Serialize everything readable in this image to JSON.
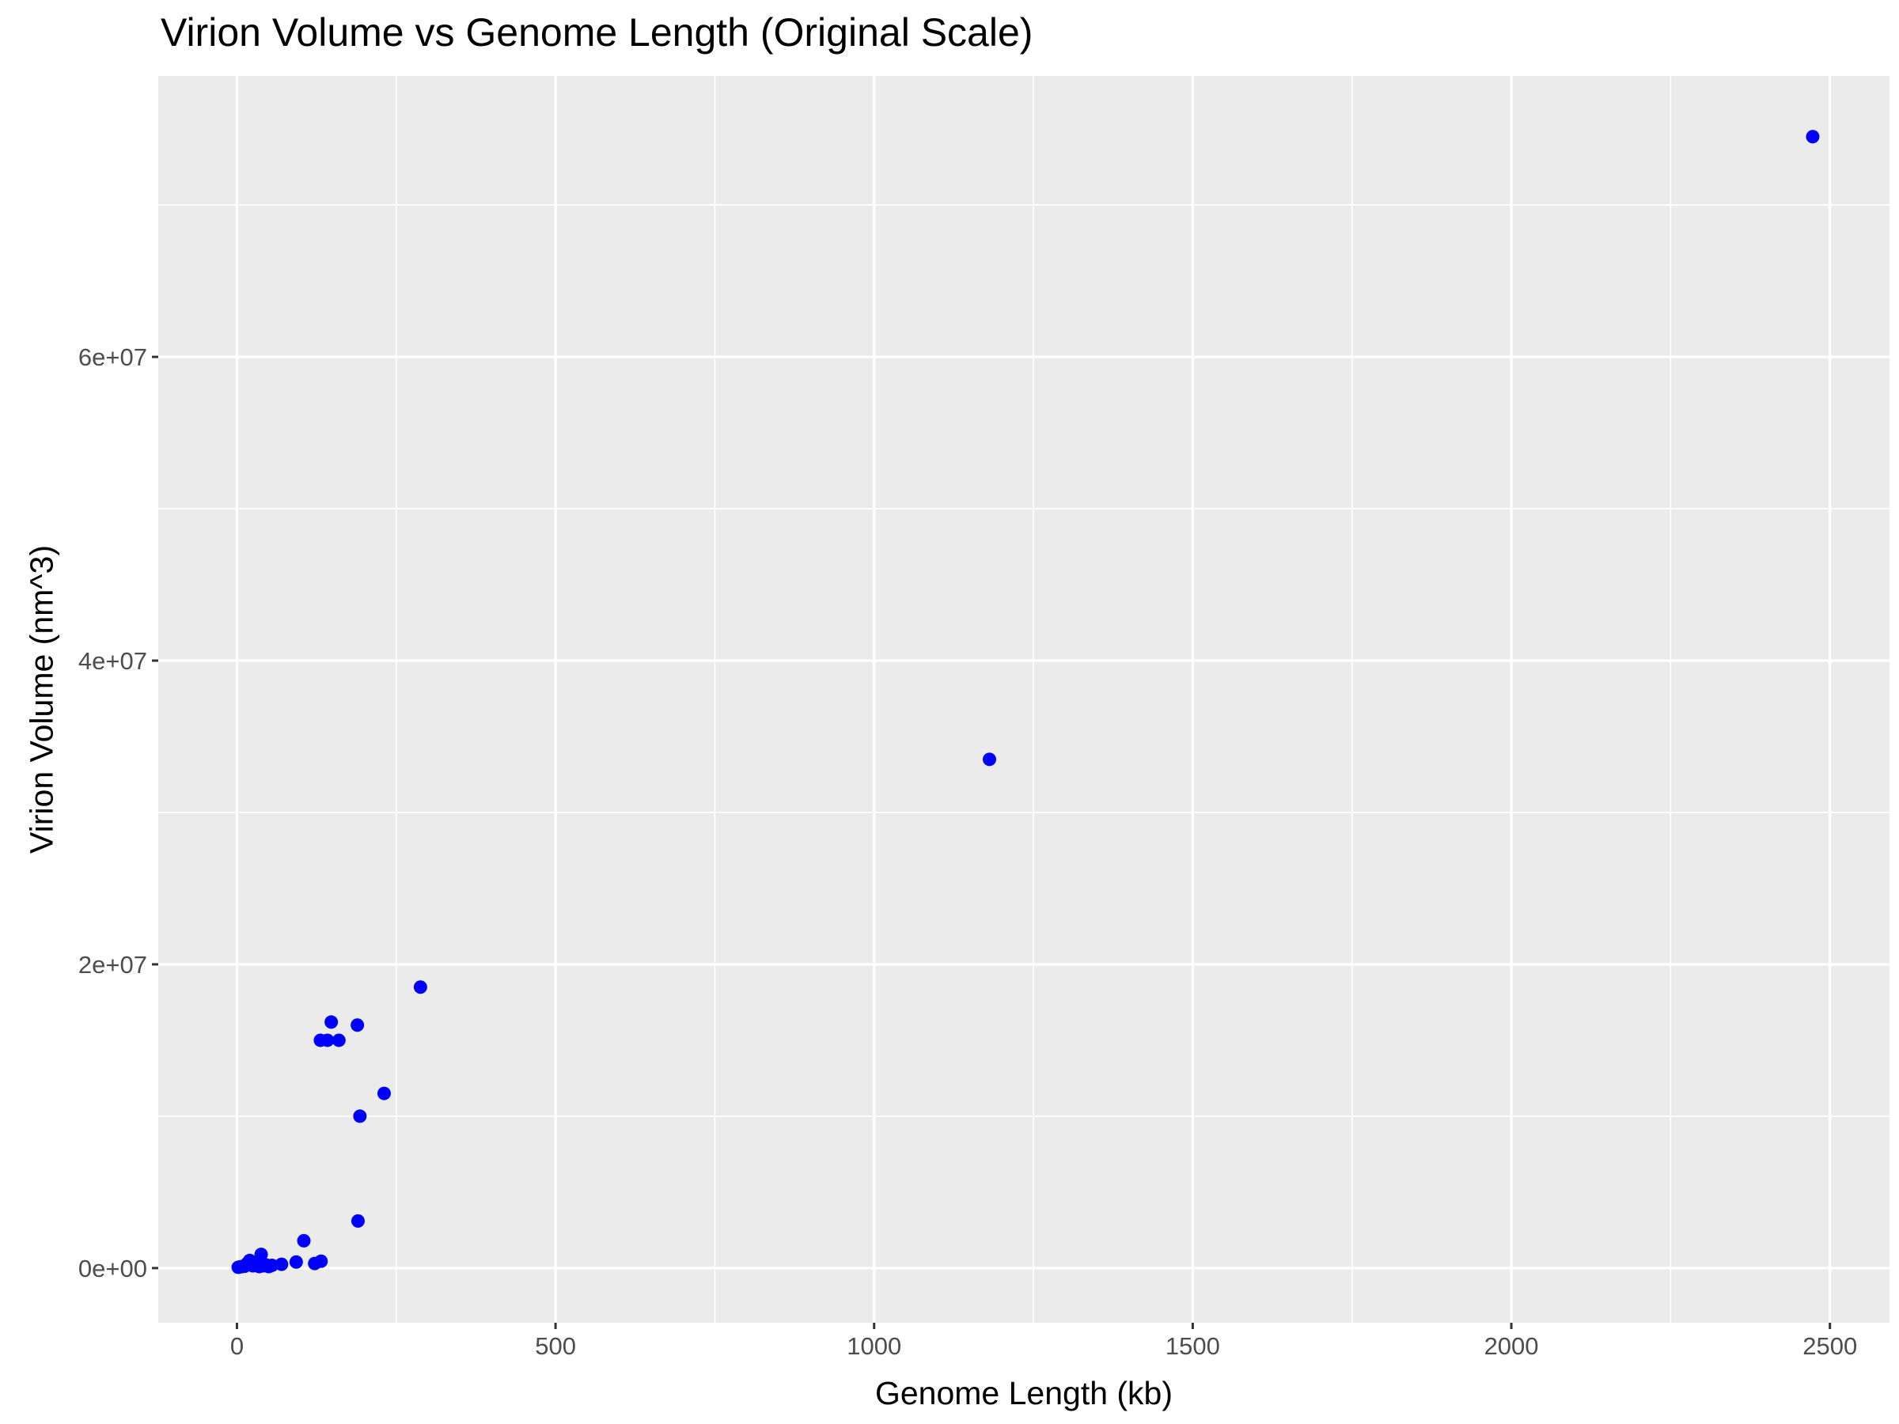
{
  "chart_data": {
    "type": "scatter",
    "title": "Virion Volume vs Genome Length (Original Scale)",
    "xlabel": "Genome Length (kb)",
    "ylabel": "Virion Volume (nm^3)",
    "xlim": [
      -123.5,
      2593.5
    ],
    "ylim": [
      -3600000,
      78500000
    ],
    "x_ticks": [
      0,
      500,
      1000,
      1500,
      2000,
      2500
    ],
    "x_tick_labels": [
      "0",
      "500",
      "1000",
      "1500",
      "2000",
      "2500"
    ],
    "y_ticks": [
      0,
      20000000,
      40000000,
      60000000
    ],
    "y_tick_labels": [
      "0e+00",
      "2e+07",
      "4e+07",
      "6e+07"
    ],
    "grid": true,
    "point_color": "#0000ff",
    "panel_background": "#ebebeb",
    "grid_color": "#ffffff",
    "points": [
      {
        "x": 2,
        "y": 50000
      },
      {
        "x": 5,
        "y": 80000
      },
      {
        "x": 8,
        "y": 100000
      },
      {
        "x": 12,
        "y": 120000
      },
      {
        "x": 16,
        "y": 300000
      },
      {
        "x": 20,
        "y": 500000
      },
      {
        "x": 25,
        "y": 150000
      },
      {
        "x": 30,
        "y": 200000
      },
      {
        "x": 35,
        "y": 100000
      },
      {
        "x": 38,
        "y": 900000
      },
      {
        "x": 42,
        "y": 150000
      },
      {
        "x": 46,
        "y": 200000
      },
      {
        "x": 50,
        "y": 100000
      },
      {
        "x": 55,
        "y": 180000
      },
      {
        "x": 70,
        "y": 250000
      },
      {
        "x": 93,
        "y": 400000
      },
      {
        "x": 105,
        "y": 1800000
      },
      {
        "x": 122,
        "y": 300000
      },
      {
        "x": 132,
        "y": 450000
      },
      {
        "x": 131,
        "y": 15000000
      },
      {
        "x": 142,
        "y": 15000000
      },
      {
        "x": 148,
        "y": 16200000
      },
      {
        "x": 160,
        "y": 15000000
      },
      {
        "x": 189,
        "y": 16000000
      },
      {
        "x": 190,
        "y": 3100000
      },
      {
        "x": 193,
        "y": 10000000
      },
      {
        "x": 231,
        "y": 11500000
      },
      {
        "x": 288,
        "y": 18500000
      },
      {
        "x": 1181,
        "y": 33500000
      },
      {
        "x": 2473,
        "y": 74500000
      }
    ]
  }
}
